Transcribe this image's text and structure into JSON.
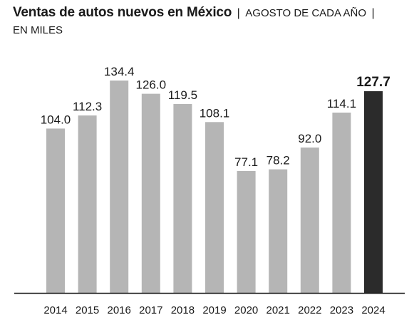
{
  "header": {
    "title": "Ventas de autos nuevos en México",
    "separator_left": "|",
    "subtitle": "AGOSTO DE CADA AÑO",
    "separator_right": "|",
    "unit": "EN MILES"
  },
  "chart_data": {
    "type": "bar",
    "title": "Ventas de autos nuevos en México",
    "subtitle": "AGOSTO DE CADA AÑO",
    "ylabel": "",
    "xlabel": "",
    "unit": "EN MILES",
    "categories": [
      "2014",
      "2015",
      "2016",
      "2017",
      "2018",
      "2019",
      "2020",
      "2021",
      "2022",
      "2023",
      "2024"
    ],
    "values": [
      104.0,
      112.3,
      134.4,
      126.0,
      119.5,
      108.1,
      77.1,
      78.2,
      92.0,
      114.1,
      127.7
    ],
    "value_labels": [
      "104.0",
      "112.3",
      "134.4",
      "126.0",
      "119.5",
      "108.1",
      "77.1",
      "78.2",
      "92.0",
      "114.1",
      "127.7"
    ],
    "highlight_index": 10,
    "ylim": [
      0,
      134.4
    ],
    "grid": false,
    "colors": {
      "bar": "#b5b5b5",
      "highlight": "#2b2b2b",
      "baseline": "#1a1a1a"
    }
  }
}
